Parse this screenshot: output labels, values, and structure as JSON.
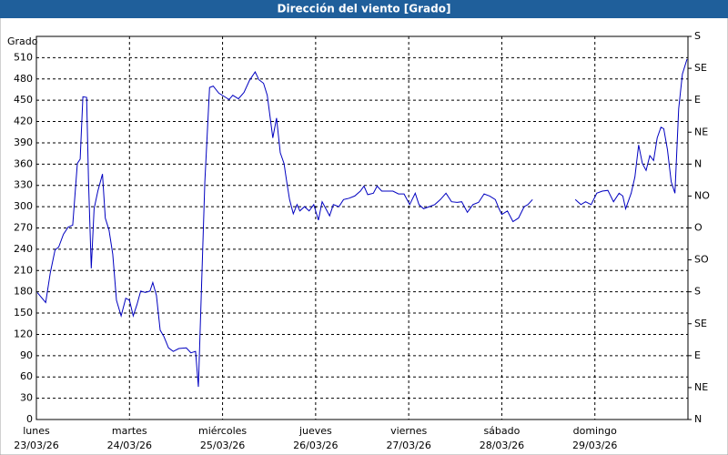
{
  "chart_data": {
    "type": "line",
    "title": "Dirección del viento [Grado]",
    "y_label": "Grado",
    "xlim": [
      0,
      7
    ],
    "xticks": [
      {
        "value": 0,
        "label": "lunes"
      },
      {
        "value": 1,
        "label": "martes"
      },
      {
        "value": 2,
        "label": "miércoles"
      },
      {
        "value": 3,
        "label": "jueves"
      },
      {
        "value": 4,
        "label": "viernes"
      },
      {
        "value": 5,
        "label": "sábado"
      },
      {
        "value": 6,
        "label": "domingo"
      }
    ],
    "xtick_dates": [
      "23/03/26",
      "24/03/26",
      "25/03/26",
      "26/03/26",
      "27/03/26",
      "28/03/26",
      "29/03/26"
    ],
    "ylim": [
      0,
      540
    ],
    "yticks": [
      0,
      30,
      60,
      90,
      120,
      150,
      180,
      210,
      240,
      270,
      300,
      330,
      360,
      390,
      420,
      450,
      480,
      510
    ],
    "y2lim": [
      0,
      540
    ],
    "y2ticks": [
      {
        "value": 0,
        "label": "N"
      },
      {
        "value": 45,
        "label": "NE"
      },
      {
        "value": 90,
        "label": "E"
      },
      {
        "value": 135,
        "label": "SE"
      },
      {
        "value": 180,
        "label": "S"
      },
      {
        "value": 225,
        "label": "SO"
      },
      {
        "value": 270,
        "label": "O"
      },
      {
        "value": 315,
        "label": "NO"
      },
      {
        "value": 360,
        "label": "N"
      },
      {
        "value": 405,
        "label": "NE"
      },
      {
        "value": 450,
        "label": "E"
      },
      {
        "value": 495,
        "label": "SE"
      },
      {
        "value": 540,
        "label": "S"
      }
    ],
    "grid": true,
    "x": [
      0.01,
      0.1,
      0.15,
      0.2,
      0.24,
      0.29,
      0.34,
      0.39,
      0.44,
      0.47,
      0.5,
      0.54,
      0.56,
      0.59,
      0.62,
      0.66,
      0.71,
      0.74,
      0.78,
      0.82,
      0.86,
      0.91,
      0.96,
      1.0,
      1.04,
      1.08,
      1.12,
      1.17,
      1.22,
      1.25,
      1.29,
      1.33,
      1.37,
      1.42,
      1.47,
      1.53,
      1.61,
      1.66,
      1.71,
      1.74,
      1.81,
      1.86,
      1.9,
      1.96,
      2.01,
      2.07,
      2.11,
      2.17,
      2.23,
      2.29,
      2.35,
      2.39,
      2.44,
      2.48,
      2.54,
      2.58,
      2.62,
      2.66,
      2.69,
      2.72,
      2.76,
      2.8,
      2.83,
      2.88,
      2.93,
      2.98,
      3.03,
      3.07,
      3.11,
      3.15,
      3.19,
      3.25,
      3.3,
      3.36,
      3.42,
      3.48,
      3.52,
      3.56,
      3.62,
      3.66,
      3.71,
      3.77,
      3.83,
      3.89,
      3.95,
      4.01,
      4.07,
      4.11,
      4.16,
      4.22,
      4.28,
      4.34,
      4.4,
      4.46,
      4.52,
      4.57,
      4.63,
      4.69,
      4.75,
      4.81,
      4.87,
      4.93,
      4.97,
      5.0,
      5.06,
      5.12,
      5.18,
      5.24,
      5.28,
      5.33,
      5.6,
      5.79,
      5.85,
      5.9,
      5.96,
      6.02,
      6.08,
      6.14,
      6.2,
      6.26,
      6.3,
      6.33,
      6.39,
      6.43,
      6.47,
      6.51,
      6.55,
      6.59,
      6.63,
      6.67,
      6.71,
      6.74,
      6.78,
      6.82,
      6.86,
      6.9,
      6.94,
      6.99
    ],
    "series": [
      {
        "color": "#0000c0",
        "values": [
          179,
          165,
          207,
          239,
          243,
          261,
          271,
          274,
          361,
          367,
          455,
          454,
          335,
          213,
          297,
          322,
          346,
          284,
          267,
          233,
          168,
          146,
          171,
          168,
          146,
          162,
          181,
          179,
          181,
          193,
          175,
          126,
          117,
          101,
          96,
          100,
          101,
          94,
          96,
          46,
          335,
          468,
          470,
          460,
          456,
          451,
          457,
          452,
          461,
          478,
          490,
          479,
          474,
          457,
          397,
          425,
          376,
          361,
          335,
          310,
          290,
          303,
          294,
          300,
          294,
          303,
          281,
          307,
          297,
          287,
          303,
          300,
          310,
          312,
          315,
          322,
          329,
          317,
          319,
          329,
          322,
          322,
          322,
          318,
          318,
          303,
          319,
          303,
          297,
          300,
          303,
          310,
          319,
          307,
          306,
          307,
          292,
          303,
          306,
          318,
          315,
          310,
          297,
          289,
          294,
          279,
          284,
          300,
          303,
          310,
          null,
          310,
          303,
          307,
          303,
          319,
          322,
          323,
          307,
          319,
          315,
          297,
          319,
          342,
          387,
          361,
          351,
          372,
          365,
          397,
          412,
          410,
          380,
          335,
          319,
          438,
          487,
          508
        ]
      }
    ]
  }
}
